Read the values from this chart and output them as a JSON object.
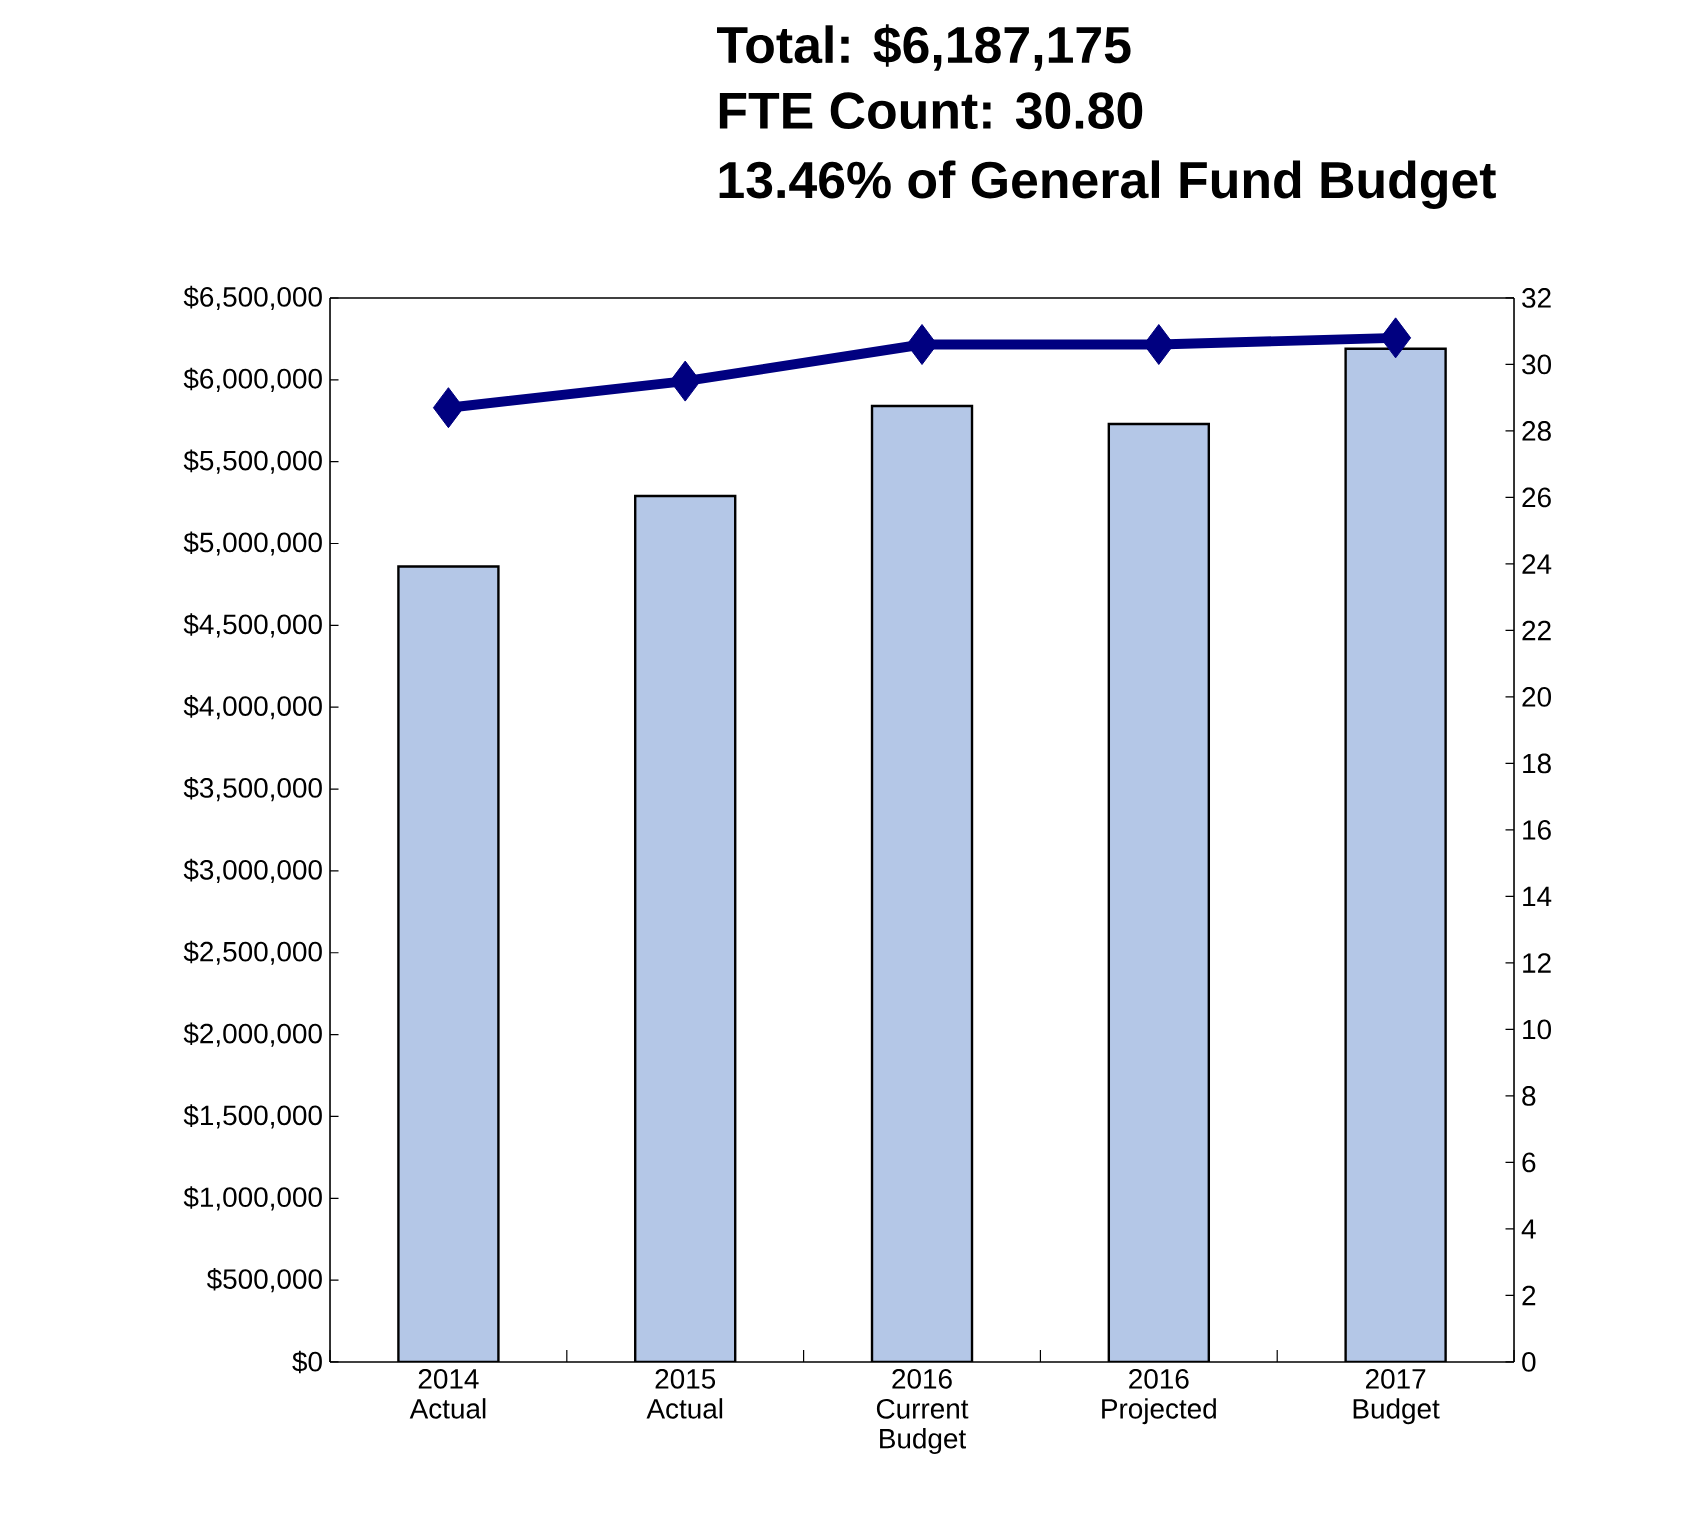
{
  "chart_data": {
    "type": "bar",
    "title": "Total: $6,187,175",
    "subtitle": "FTE Count: 30.80",
    "annotations": [
      "13.46% of General Fund Budget"
    ],
    "categories": [
      "2014 Actual",
      "2015 Actual",
      "2016 Current Budget",
      "2016 Projected",
      "2017 Budget"
    ],
    "series": [
      {
        "color": "#b4c7e7",
        "values": [
          4860000,
          5290000,
          5840000,
          5730000,
          6190000
        ]
      },
      {
        "type": "line",
        "axis": "y2",
        "color": "#000080",
        "marker": "diamond",
        "values": [
          28.7,
          29.5,
          30.6,
          30.6,
          30.8
        ]
      }
    ],
    "ylim": [
      0,
      6500000
    ],
    "yticks": [
      {
        "value": 0,
        "label": "$0"
      },
      {
        "value": 500000,
        "label": "$500,000"
      },
      {
        "value": 1000000,
        "label": "$1,000,000"
      },
      {
        "value": 1500000,
        "label": "$1,500,000"
      },
      {
        "value": 2000000,
        "label": "$2,000,000"
      },
      {
        "value": 2500000,
        "label": "$2,500,000"
      },
      {
        "value": 3000000,
        "label": "$3,000,000"
      },
      {
        "value": 3500000,
        "label": "$3,500,000"
      },
      {
        "value": 4000000,
        "label": "$4,000,000"
      },
      {
        "value": 4500000,
        "label": "$4,500,000"
      },
      {
        "value": 5000000,
        "label": "$5,000,000"
      },
      {
        "value": 5500000,
        "label": "$5,500,000"
      },
      {
        "value": 6000000,
        "label": "$6,000,000"
      },
      {
        "value": 6500000,
        "label": "$6,500,000"
      }
    ],
    "y2lim": [
      0,
      32
    ],
    "y2ticks": [
      0,
      2,
      4,
      6,
      8,
      10,
      12,
      14,
      16,
      18,
      20,
      22,
      24,
      26,
      28,
      30,
      32
    ],
    "grid": false
  }
}
